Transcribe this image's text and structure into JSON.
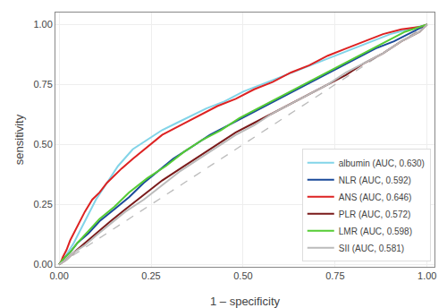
{
  "chart_data": {
    "type": "line",
    "xlabel": "1 – specificity",
    "ylabel": "sensitivity",
    "xlim": [
      -0.01,
      1.02
    ],
    "ylim": [
      -0.01,
      1.05
    ],
    "xticks": [
      {
        "value": 0.0,
        "label": "0.00"
      },
      {
        "value": 0.25,
        "label": "0.25"
      },
      {
        "value": 0.5,
        "label": "0.50"
      },
      {
        "value": 0.75,
        "label": "0.75"
      },
      {
        "value": 1.0,
        "label": "1.00"
      }
    ],
    "yticks": [
      {
        "value": 0.0,
        "label": "0.00"
      },
      {
        "value": 0.25,
        "label": "0.25"
      },
      {
        "value": 0.5,
        "label": "0.50"
      },
      {
        "value": 0.75,
        "label": "0.75"
      },
      {
        "value": 1.0,
        "label": "1.00"
      }
    ],
    "grid": true,
    "legend": "lower right",
    "series": [
      {
        "color": "#bbbbbb",
        "line_style": "dashed",
        "x": [
          0,
          1
        ],
        "values": [
          0,
          1
        ]
      },
      {
        "name": "albumin (AUC, 0.630)",
        "color": "#82d4e8",
        "x": [
          0.0,
          0.01,
          0.02,
          0.04,
          0.06,
          0.08,
          0.1,
          0.13,
          0.16,
          0.2,
          0.23,
          0.25,
          0.28,
          0.32,
          0.36,
          0.4,
          0.45,
          0.5,
          0.55,
          0.6,
          0.65,
          0.7,
          0.75,
          0.8,
          0.85,
          0.9,
          0.95,
          1.0
        ],
        "values": [
          0.0,
          0.02,
          0.04,
          0.09,
          0.15,
          0.21,
          0.27,
          0.34,
          0.41,
          0.48,
          0.51,
          0.53,
          0.56,
          0.59,
          0.62,
          0.65,
          0.68,
          0.72,
          0.75,
          0.78,
          0.81,
          0.84,
          0.87,
          0.9,
          0.93,
          0.96,
          0.98,
          1.0
        ]
      },
      {
        "name": "NLR (AUC, 0.592)",
        "color": "#1a4a9a",
        "x": [
          0.0,
          0.01,
          0.03,
          0.05,
          0.08,
          0.11,
          0.15,
          0.19,
          0.23,
          0.27,
          0.31,
          0.36,
          0.41,
          0.46,
          0.51,
          0.56,
          0.61,
          0.66,
          0.71,
          0.76,
          0.81,
          0.86,
          0.91,
          0.96,
          1.0
        ],
        "values": [
          0.0,
          0.02,
          0.05,
          0.09,
          0.13,
          0.18,
          0.23,
          0.28,
          0.34,
          0.39,
          0.44,
          0.49,
          0.54,
          0.58,
          0.62,
          0.66,
          0.7,
          0.74,
          0.78,
          0.82,
          0.86,
          0.9,
          0.93,
          0.97,
          1.0
        ]
      },
      {
        "name": "ANS (AUC, 0.646)",
        "color": "#dd2222",
        "x": [
          0.0,
          0.005,
          0.01,
          0.02,
          0.03,
          0.05,
          0.07,
          0.09,
          0.11,
          0.13,
          0.15,
          0.17,
          0.2,
          0.24,
          0.28,
          0.33,
          0.38,
          0.43,
          0.48,
          0.53,
          0.58,
          0.63,
          0.68,
          0.73,
          0.78,
          0.83,
          0.88,
          0.93,
          0.98,
          1.0
        ],
        "values": [
          0.0,
          0.01,
          0.03,
          0.06,
          0.1,
          0.16,
          0.22,
          0.27,
          0.3,
          0.34,
          0.37,
          0.4,
          0.44,
          0.49,
          0.54,
          0.58,
          0.62,
          0.66,
          0.69,
          0.73,
          0.76,
          0.8,
          0.83,
          0.87,
          0.9,
          0.93,
          0.96,
          0.98,
          0.99,
          1.0
        ]
      },
      {
        "name": "PLR (AUC, 0.572)",
        "color": "#7a1a1a",
        "x": [
          0.0,
          0.02,
          0.04,
          0.07,
          0.1,
          0.14,
          0.18,
          0.23,
          0.28,
          0.33,
          0.38,
          0.43,
          0.48,
          0.53,
          0.58,
          0.63,
          0.68,
          0.73,
          0.78,
          0.83,
          0.88,
          0.93,
          0.98,
          1.0
        ],
        "values": [
          0.0,
          0.02,
          0.05,
          0.09,
          0.13,
          0.18,
          0.23,
          0.29,
          0.35,
          0.4,
          0.45,
          0.5,
          0.55,
          0.59,
          0.63,
          0.67,
          0.71,
          0.75,
          0.79,
          0.84,
          0.88,
          0.93,
          0.97,
          1.0
        ]
      },
      {
        "name": "LMR (AUC, 0.598)",
        "color": "#55cc33",
        "x": [
          0.0,
          0.01,
          0.03,
          0.05,
          0.08,
          0.11,
          0.15,
          0.19,
          0.24,
          0.29,
          0.34,
          0.39,
          0.44,
          0.49,
          0.54,
          0.59,
          0.64,
          0.69,
          0.74,
          0.79,
          0.84,
          0.89,
          0.94,
          1.0
        ],
        "values": [
          0.0,
          0.02,
          0.05,
          0.09,
          0.14,
          0.19,
          0.24,
          0.3,
          0.36,
          0.41,
          0.47,
          0.52,
          0.56,
          0.61,
          0.65,
          0.69,
          0.73,
          0.77,
          0.81,
          0.85,
          0.89,
          0.93,
          0.97,
          1.0
        ]
      },
      {
        "name": "SII (AUC, 0.581)",
        "color": "#bbbbbb",
        "x": [
          0.0,
          0.02,
          0.04,
          0.07,
          0.1,
          0.14,
          0.18,
          0.23,
          0.28,
          0.33,
          0.38,
          0.43,
          0.48,
          0.53,
          0.58,
          0.63,
          0.68,
          0.73,
          0.78,
          0.83,
          0.88,
          0.93,
          0.98,
          1.0
        ],
        "values": [
          0.0,
          0.02,
          0.05,
          0.08,
          0.12,
          0.17,
          0.22,
          0.27,
          0.33,
          0.39,
          0.44,
          0.49,
          0.54,
          0.58,
          0.63,
          0.67,
          0.71,
          0.75,
          0.8,
          0.84,
          0.88,
          0.93,
          0.97,
          1.0
        ]
      }
    ]
  }
}
